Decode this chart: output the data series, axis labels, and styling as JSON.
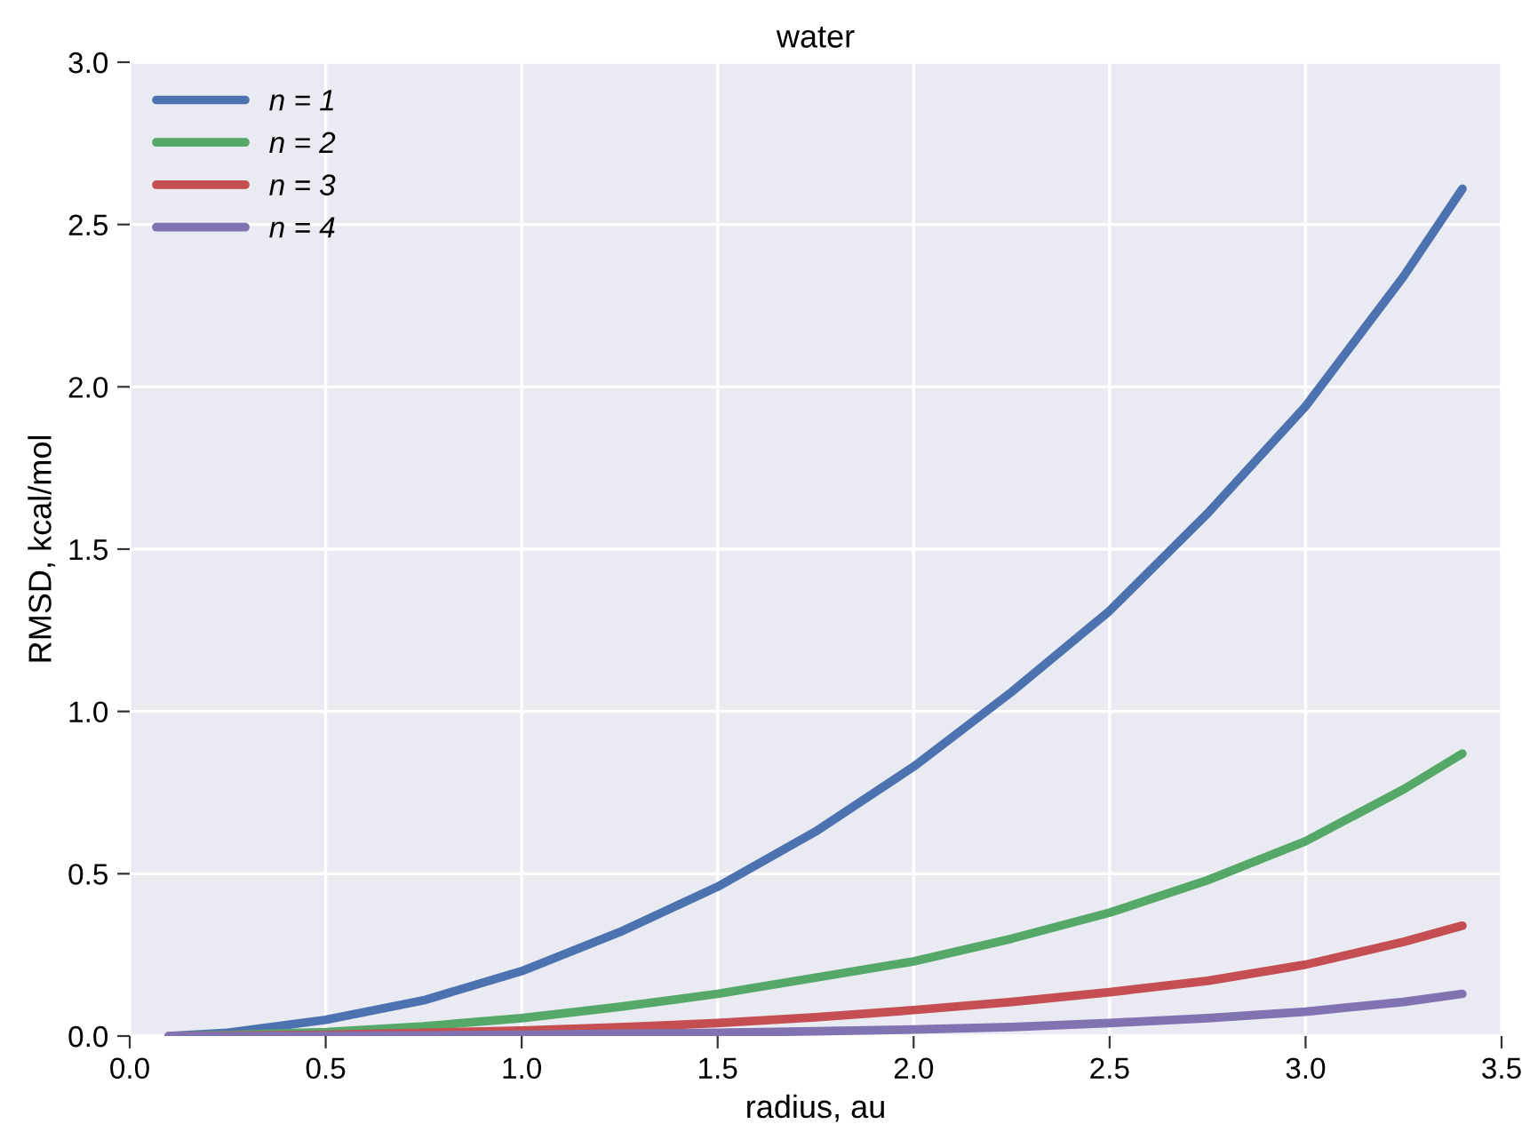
{
  "chart_data": {
    "type": "line",
    "title": "water",
    "xlabel": "radius, au",
    "ylabel": "RMSD, kcal/mol",
    "x": [
      0.1,
      0.25,
      0.5,
      0.75,
      1.0,
      1.25,
      1.5,
      1.75,
      2.0,
      2.25,
      2.5,
      2.75,
      3.0,
      3.25,
      3.4
    ],
    "series": [
      {
        "name": "n = 1",
        "color": "#4c72b0",
        "values": [
          0,
          0.01,
          0.05,
          0.11,
          0.2,
          0.32,
          0.46,
          0.63,
          0.83,
          1.06,
          1.31,
          1.61,
          1.94,
          2.34,
          2.61
        ]
      },
      {
        "name": "n = 2",
        "color": "#55a868",
        "values": [
          0,
          0.003,
          0.012,
          0.03,
          0.055,
          0.09,
          0.13,
          0.18,
          0.23,
          0.3,
          0.38,
          0.48,
          0.6,
          0.76,
          0.87
        ]
      },
      {
        "name": "n = 3",
        "color": "#c44e52",
        "values": [
          0,
          0.001,
          0.004,
          0.01,
          0.017,
          0.027,
          0.04,
          0.058,
          0.08,
          0.105,
          0.135,
          0.17,
          0.22,
          0.29,
          0.34
        ]
      },
      {
        "name": "n = 4",
        "color": "#8172b2",
        "values": [
          0,
          0,
          0.001,
          0.002,
          0.004,
          0.007,
          0.01,
          0.015,
          0.02,
          0.028,
          0.04,
          0.055,
          0.075,
          0.105,
          0.13
        ]
      }
    ],
    "xlim": [
      0,
      3.5
    ],
    "xticks": [
      {
        "value": 0,
        "label": "0.0"
      },
      0.5,
      {
        "value": 1,
        "label": "1.0"
      },
      1.5,
      {
        "value": 2,
        "label": "2.0"
      },
      2.5,
      {
        "value": 3,
        "label": "3.0"
      },
      3.5
    ],
    "ylim": [
      0,
      3
    ],
    "yticks": [
      {
        "value": 0,
        "label": "0.0"
      },
      0.5,
      {
        "value": 1,
        "label": "1.0"
      },
      1.5,
      {
        "value": 2,
        "label": "2.0"
      },
      2.5,
      {
        "value": 3,
        "label": "3.0"
      }
    ],
    "grid": true,
    "legend": "top left",
    "marker": "none",
    "line_style": "solid"
  }
}
